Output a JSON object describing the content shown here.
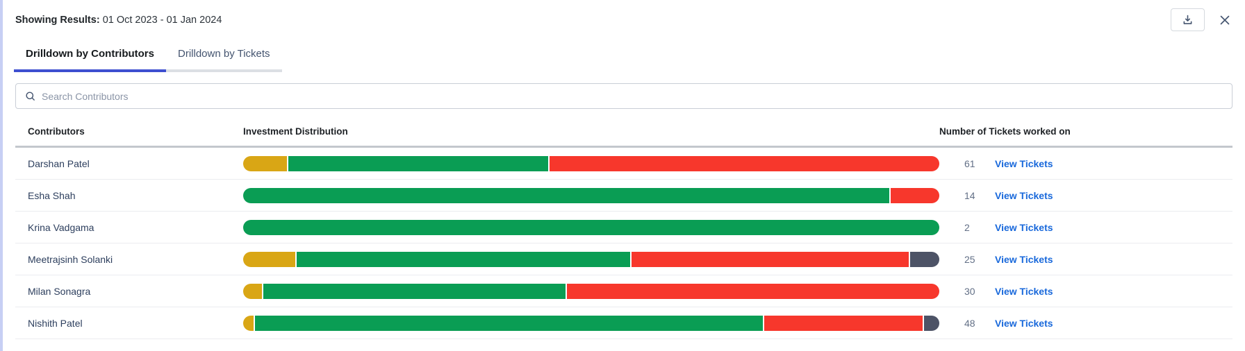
{
  "header": {
    "showing_results_label": "Showing Results:",
    "date_range": "01 Oct 2023 - 01 Jan 2024",
    "icons": [
      "download-icon",
      "close-icon"
    ]
  },
  "tabs": [
    {
      "label": "Drilldown by Contributors",
      "active": true
    },
    {
      "label": "Drilldown by Tickets",
      "active": false
    }
  ],
  "search": {
    "placeholder": "Search Contributors",
    "icon": "search-icon"
  },
  "table": {
    "columns": [
      "Contributors",
      "Investment Distribution",
      "Number of Tickets worked on"
    ],
    "view_tickets_label": "View Tickets",
    "rows": [
      {
        "name": "Darshan Patel",
        "tickets": "61",
        "segments": [
          {
            "color": "gold",
            "pct": 6.5
          },
          {
            "color": "green",
            "pct": 37.5
          },
          {
            "color": "red",
            "pct": 56.0
          }
        ]
      },
      {
        "name": "Esha Shah",
        "tickets": "14",
        "segments": [
          {
            "color": "green",
            "pct": 93.0
          },
          {
            "color": "red",
            "pct": 7.0
          }
        ]
      },
      {
        "name": "Krina Vadgama",
        "tickets": "2",
        "segments": [
          {
            "color": "green",
            "pct": 100.0
          }
        ]
      },
      {
        "name": "Meetrajsinh Solanki",
        "tickets": "25",
        "segments": [
          {
            "color": "gold",
            "pct": 7.7
          },
          {
            "color": "green",
            "pct": 48.1
          },
          {
            "color": "red",
            "pct": 40.0
          },
          {
            "color": "slate",
            "pct": 4.2
          }
        ]
      },
      {
        "name": "Milan Sonagra",
        "tickets": "30",
        "segments": [
          {
            "color": "gold",
            "pct": 2.9
          },
          {
            "color": "green",
            "pct": 43.6
          },
          {
            "color": "red",
            "pct": 53.5
          }
        ]
      },
      {
        "name": "Nishith Patel",
        "tickets": "48",
        "segments": [
          {
            "color": "gold",
            "pct": 1.7
          },
          {
            "color": "green",
            "pct": 73.2
          },
          {
            "color": "red",
            "pct": 22.9
          },
          {
            "color": "slate",
            "pct": 2.2
          }
        ]
      }
    ]
  },
  "colors": {
    "gold": "#d9a615",
    "green": "#0a9d54",
    "red": "#f7372c",
    "slate": "#4d5366",
    "link_blue": "#1868db",
    "active_tab_underline": "#3e4fd0"
  }
}
